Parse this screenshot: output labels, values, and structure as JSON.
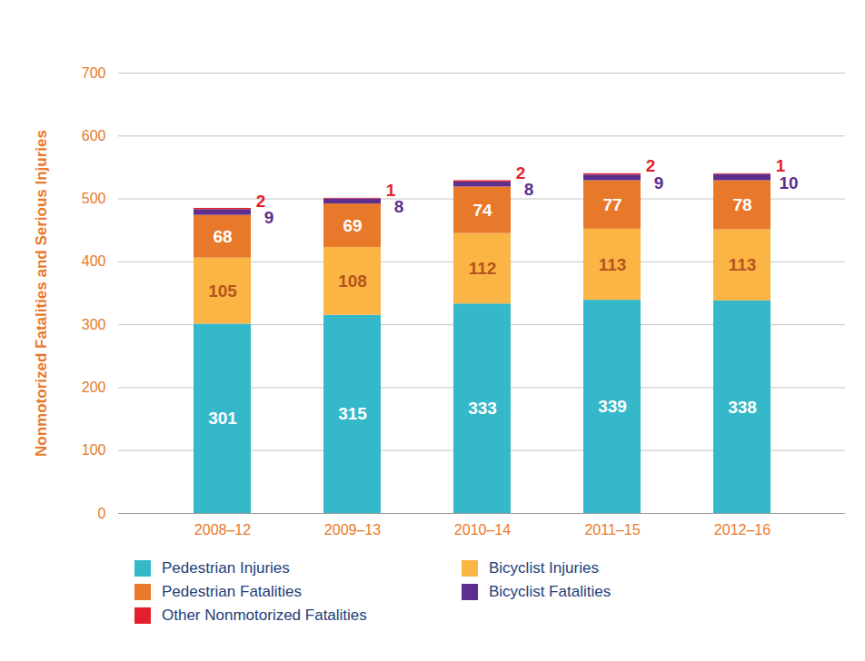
{
  "chart_data": {
    "type": "bar",
    "stacked": true,
    "data_labels": true,
    "grid": true,
    "legend": "bottom",
    "y_label": "Nonmotorized Fatalities and Serious Injuries",
    "categories": [
      "2008–12",
      "2009–13",
      "2010–14",
      "2011–15",
      "2012–16"
    ],
    "ylim": [
      0,
      700
    ],
    "yticks": [
      0,
      100,
      200,
      300,
      400,
      500,
      600,
      700
    ],
    "series": [
      {
        "name": "Pedestrian Injuries",
        "color": "#35b8c9",
        "values": [
          301,
          315,
          333,
          339,
          338
        ]
      },
      {
        "name": "Bicyclist Injuries",
        "color": "#fbb545",
        "values": [
          105,
          108,
          112,
          113,
          113
        ]
      },
      {
        "name": "Pedestrian Fatalities",
        "color": "#e8792b",
        "values": [
          68,
          69,
          74,
          77,
          78
        ]
      },
      {
        "name": "Bicyclist Fatalities",
        "color": "#5c2f8f",
        "values": [
          9,
          8,
          8,
          9,
          10
        ]
      },
      {
        "name": "Other Nonmotorized Fatalities",
        "color": "#e41f2d",
        "values": [
          2,
          1,
          2,
          2,
          1
        ]
      }
    ]
  }
}
